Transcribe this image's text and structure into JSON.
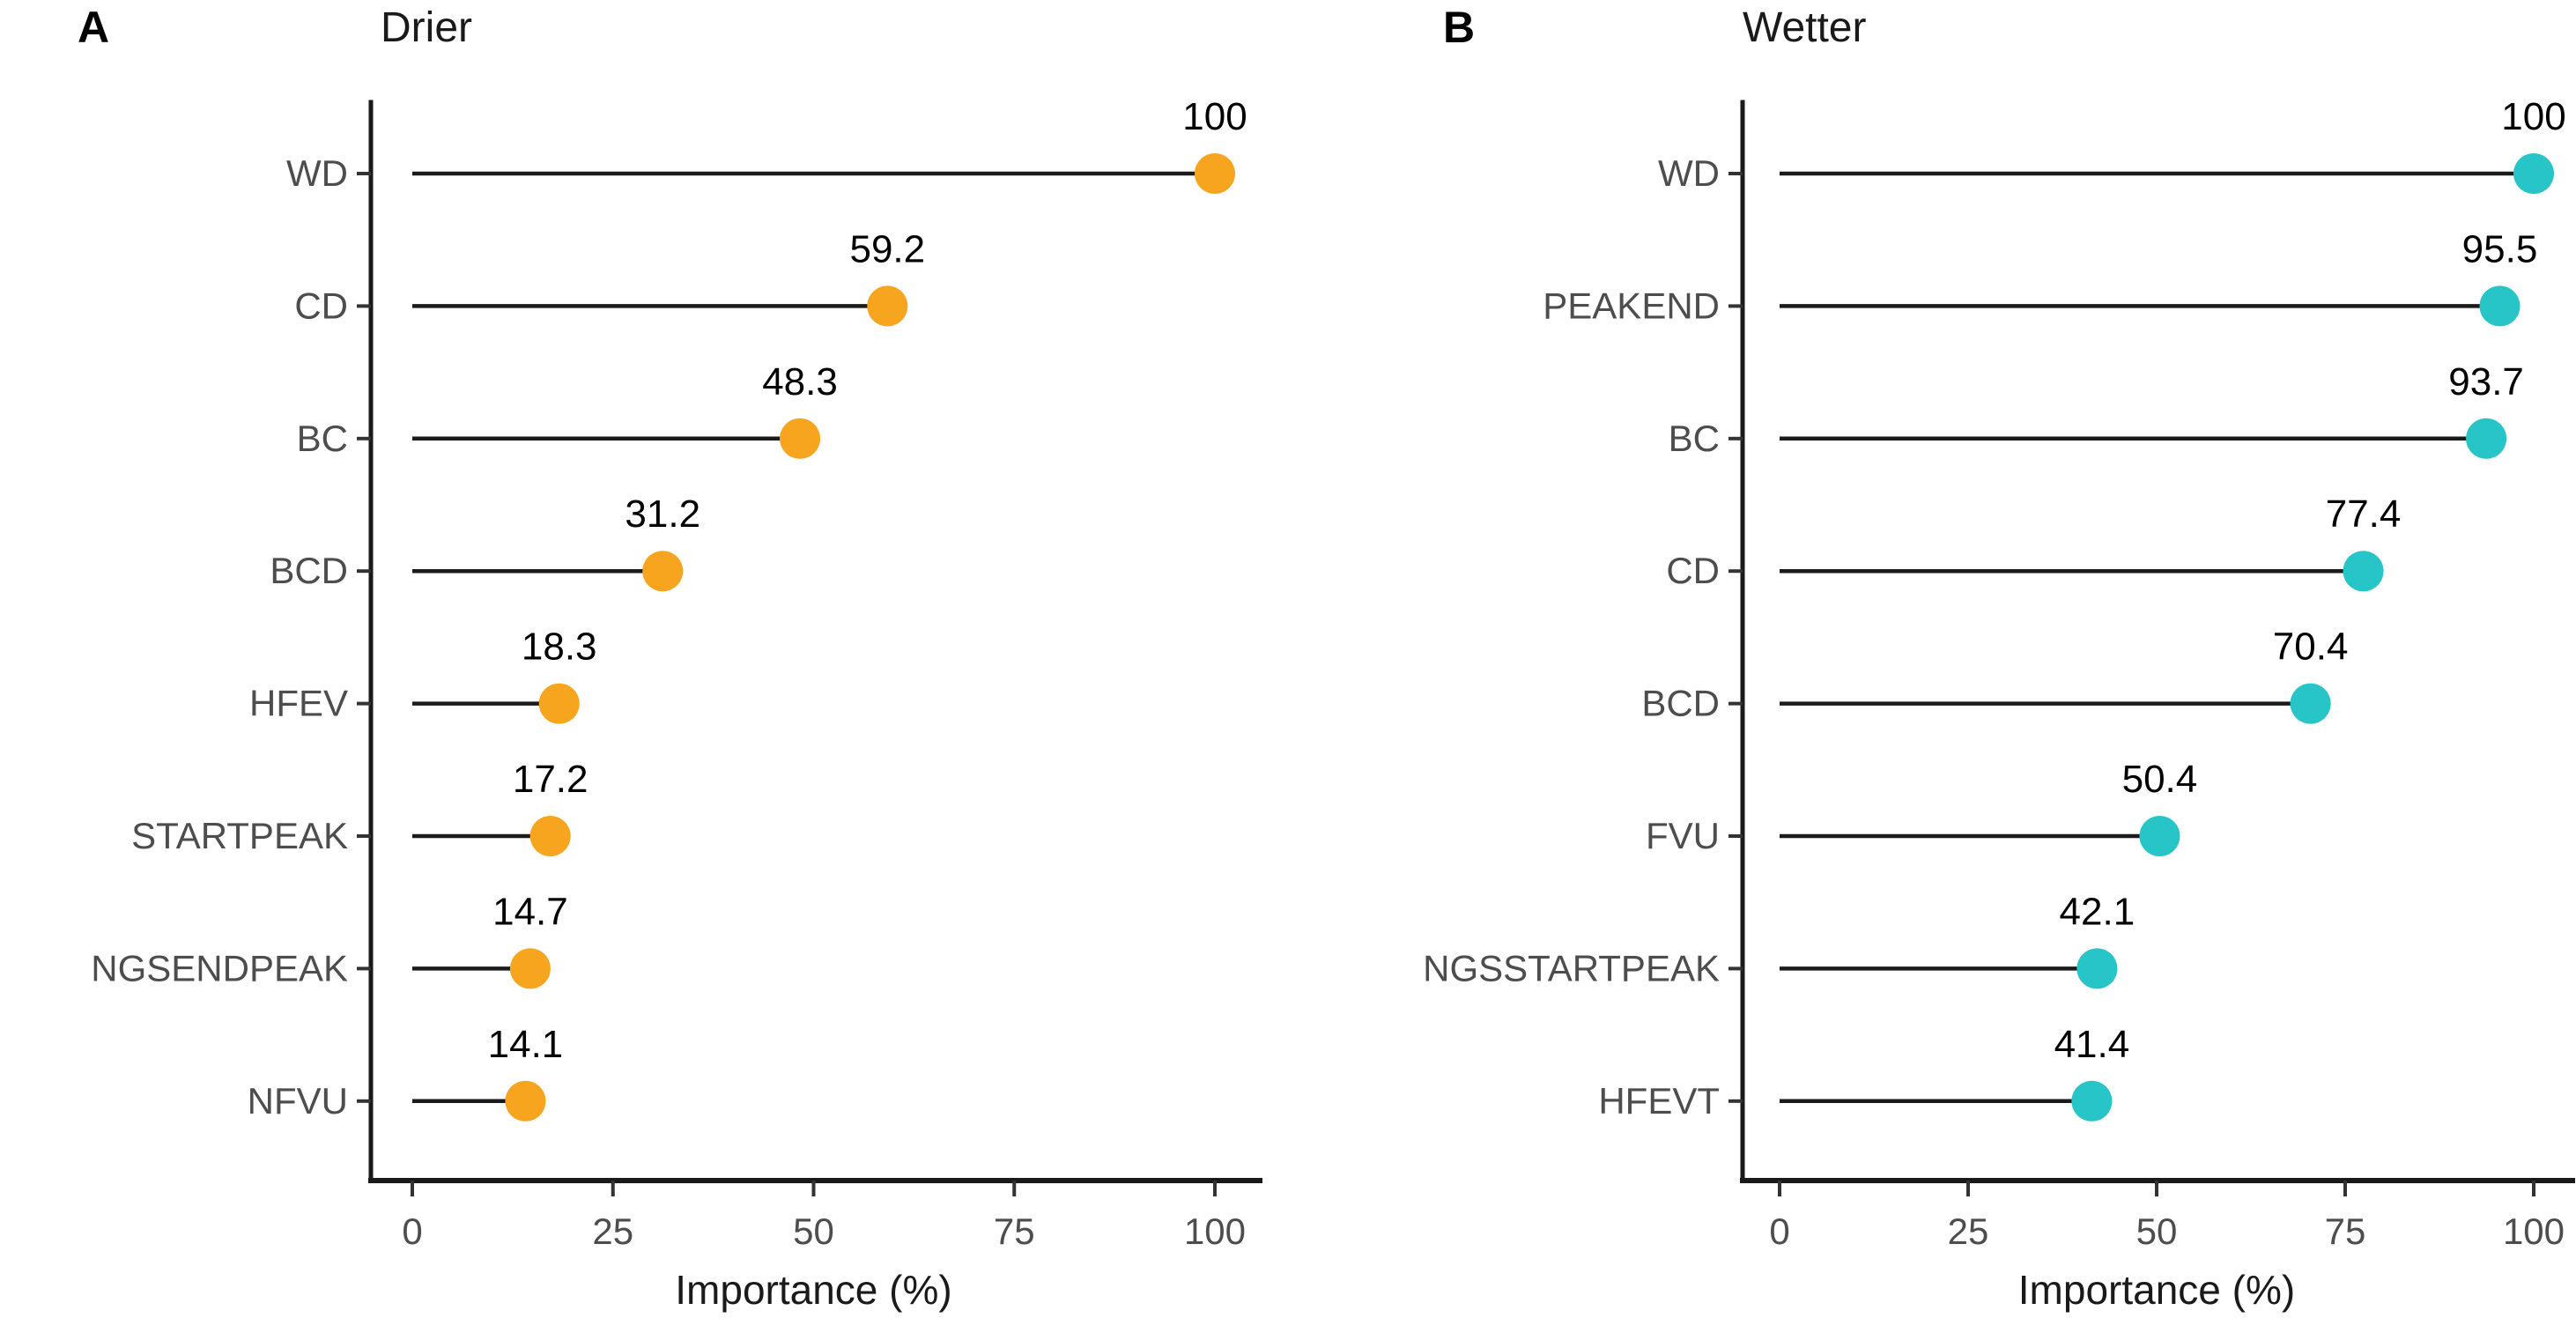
{
  "chart_data": [
    {
      "type": "lollipop",
      "panel_label": "A",
      "title": "Drier",
      "categories": [
        "WD",
        "CD",
        "BC",
        "BCD",
        "HFEV",
        "STARTPEAK",
        "NGSENDPEAK",
        "NFVU"
      ],
      "values": [
        100,
        59.2,
        48.3,
        31.2,
        18.3,
        17.2,
        14.7,
        14.1
      ],
      "value_labels": [
        "100",
        "59.2",
        "48.3",
        "31.2",
        "18.3",
        "17.2",
        "14.7",
        "14.1"
      ],
      "xlabel": "Importance (%)",
      "x_ticks": [
        "0",
        "25",
        "50",
        "75",
        "100"
      ],
      "x_tick_values": [
        0,
        25,
        50,
        75,
        100
      ],
      "xlim": [
        0,
        100
      ],
      "orientation": "horizontal",
      "grid": false,
      "legend": "none",
      "dot_color": "#F7A41E",
      "stem_color": "#1B1B1B",
      "axis_line_color": "#1A1A1A",
      "axis_text_color": "#4D4D4D",
      "value_label_color": "#000000"
    },
    {
      "type": "lollipop",
      "panel_label": "B",
      "title": "Wetter",
      "categories": [
        "WD",
        "PEAKEND",
        "BC",
        "CD",
        "BCD",
        "FVU",
        "NGSSTARTPEAK",
        "HFEVT"
      ],
      "values": [
        100,
        95.5,
        93.7,
        77.4,
        70.4,
        50.4,
        42.1,
        41.4
      ],
      "value_labels": [
        "100",
        "95.5",
        "93.7",
        "77.4",
        "70.4",
        "50.4",
        "42.1",
        "41.4"
      ],
      "xlabel": "Importance (%)",
      "x_ticks": [
        "0",
        "25",
        "50",
        "75",
        "100"
      ],
      "x_tick_values": [
        0,
        25,
        50,
        75,
        100
      ],
      "xlim": [
        0,
        100
      ],
      "orientation": "horizontal",
      "grid": false,
      "legend": "none",
      "dot_color": "#27C5C7",
      "stem_color": "#1B1B1B",
      "axis_line_color": "#1A1A1A",
      "axis_text_color": "#4D4D4D",
      "value_label_color": "#000000"
    }
  ]
}
